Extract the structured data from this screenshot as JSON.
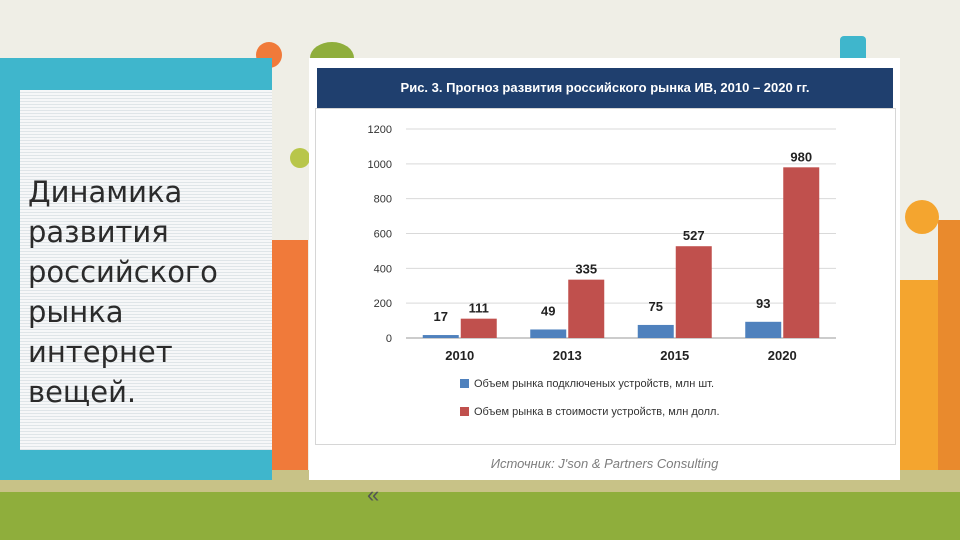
{
  "slide": {
    "title": "Динамика развития российского рынка интернет вещей.",
    "nav_icon": "double-chevron-left-icon",
    "nav_glyph": "«"
  },
  "figure": {
    "header": "Рис. 3. Прогноз развития российского рынка ИВ, 2010 – 2020 гг.",
    "source": "Источник: J'son & Partners Consulting"
  },
  "chart_data": {
    "type": "bar",
    "categories": [
      "2010",
      "2013",
      "2015",
      "2020"
    ],
    "series": [
      {
        "name": "Объем рынка подключеных устройств, млн шт.",
        "values": [
          17,
          49,
          75,
          93
        ],
        "color": "#4f81bd"
      },
      {
        "name": "Объем рынка в стоимости устройств, млн долл.",
        "values": [
          111,
          335,
          527,
          980
        ],
        "color": "#c0504d"
      }
    ],
    "ylim": [
      0,
      1200
    ],
    "yticks": [
      "0",
      "200",
      "400",
      "600",
      "800",
      "1000",
      "1200"
    ],
    "grid": true,
    "legend_position": "bottom"
  }
}
